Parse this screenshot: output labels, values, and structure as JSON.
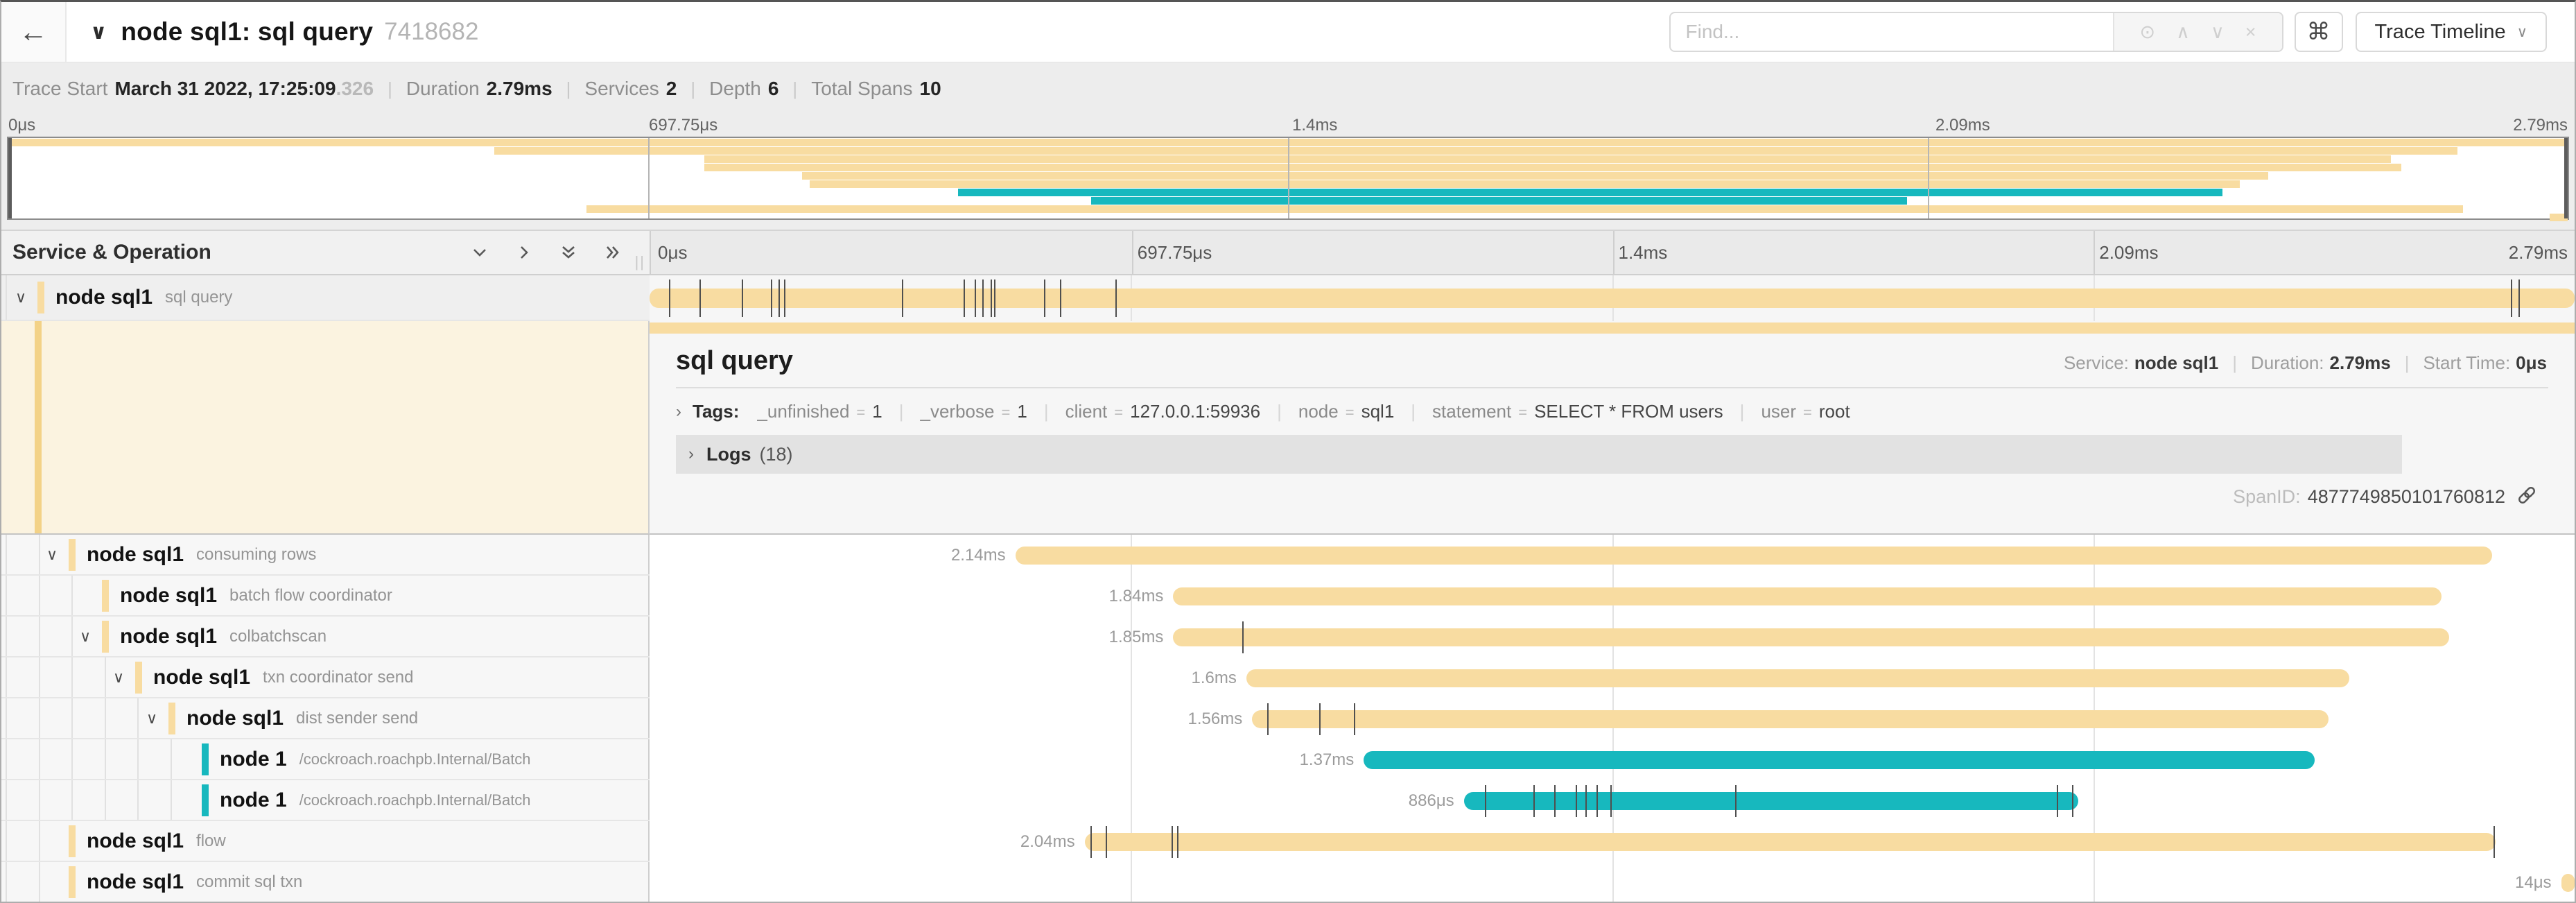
{
  "header": {
    "back_icon": "←",
    "title_caret": "∨",
    "title": "node sql1: sql query",
    "trace_id": "7418682",
    "find_placeholder": "Find...",
    "find_icons": {
      "target": "⊙",
      "prev": "∧",
      "next": "∨",
      "clear": "×"
    },
    "shortcuts_button": "⌘",
    "view_dropdown": "Trace Timeline",
    "view_caret": "∨"
  },
  "summary": {
    "items": [
      {
        "label": "Trace Start",
        "value": "March 31 2022, 17:25:09",
        "suffix": ".326"
      },
      {
        "label": "Duration",
        "value": "2.79ms"
      },
      {
        "label": "Services",
        "value": "2"
      },
      {
        "label": "Depth",
        "value": "6"
      },
      {
        "label": "Total Spans",
        "value": "10"
      }
    ]
  },
  "axis": {
    "ticks": [
      "0μs",
      "697.75μs",
      "1.4ms",
      "2.09ms",
      "2.79ms"
    ],
    "positions": [
      0,
      25,
      50,
      75,
      100
    ]
  },
  "left_header": {
    "title": "Service & Operation",
    "grip": "||"
  },
  "colors": {
    "tan": "#F8DCA1",
    "teal": "#17B8BE",
    "detail_bg": "#FBF3E0",
    "detail_stripe": "#F3D287"
  },
  "spans": [
    {
      "svc": "node sql1",
      "op": "sql query",
      "depth": 0,
      "chevron": true,
      "color": "tan",
      "selected": true,
      "dur": "",
      "bar": {
        "s": 0,
        "w": 100
      },
      "ticks": [
        1.0,
        2.6,
        4.8,
        6.3,
        6.7,
        7.0,
        13.1,
        16.3,
        16.9,
        17.3,
        17.7,
        17.9,
        20.5,
        21.3,
        24.2,
        96.7,
        97.1
      ]
    },
    {
      "svc": "node sql1",
      "op": "consuming rows",
      "depth": 1,
      "chevron": true,
      "color": "tan",
      "dur": "2.14ms",
      "bar": {
        "s": 19.0,
        "w": 76.7
      },
      "ticks": []
    },
    {
      "svc": "node sql1",
      "op": "batch flow coordinator",
      "depth": 2,
      "chevron": false,
      "color": "tan",
      "dur": "1.84ms",
      "bar": {
        "s": 27.2,
        "w": 65.9
      },
      "ticks": []
    },
    {
      "svc": "node sql1",
      "op": "colbatchscan",
      "depth": 2,
      "chevron": true,
      "color": "tan",
      "dur": "1.85ms",
      "bar": {
        "s": 27.2,
        "w": 66.3
      },
      "ticks": [
        30.8
      ]
    },
    {
      "svc": "node sql1",
      "op": "txn coordinator send",
      "depth": 3,
      "chevron": true,
      "color": "tan",
      "dur": "1.6ms",
      "bar": {
        "s": 31.0,
        "w": 57.3
      },
      "ticks": []
    },
    {
      "svc": "node sql1",
      "op": "dist sender send",
      "depth": 4,
      "chevron": true,
      "color": "tan",
      "dur": "1.56ms",
      "bar": {
        "s": 31.3,
        "w": 55.9
      },
      "ticks": [
        32.1,
        34.8,
        36.6
      ]
    },
    {
      "svc": "node 1",
      "op": "/cockroach.roachpb.Internal/Batch",
      "depth": 5,
      "chevron": false,
      "color": "teal",
      "dur": "1.37ms",
      "bar": {
        "s": 37.1,
        "w": 49.4
      },
      "ticks": []
    },
    {
      "svc": "node 1",
      "op": "/cockroach.roachpb.Internal/Batch",
      "depth": 5,
      "chevron": false,
      "color": "teal",
      "dur": "886μs",
      "bar": {
        "s": 42.3,
        "w": 31.9
      },
      "ticks": [
        43.4,
        45.9,
        47.0,
        48.1,
        48.6,
        49.2,
        49.9,
        56.4,
        73.1,
        73.9
      ]
    },
    {
      "svc": "node sql1",
      "op": "flow",
      "depth": 1,
      "chevron": false,
      "color": "tan",
      "dur": "2.04ms",
      "bar": {
        "s": 22.6,
        "w": 73.3
      },
      "ticks": [
        22.9,
        23.7,
        27.1,
        27.4,
        95.8
      ]
    },
    {
      "svc": "node sql1",
      "op": "commit sql txn",
      "depth": 1,
      "chevron": false,
      "color": "tan",
      "dur": "14μs",
      "bar": {
        "s": 99.3,
        "w": 0.7
      },
      "ticks": []
    }
  ],
  "detail": {
    "title": "sql query",
    "meta": [
      {
        "label": "Service:",
        "value": "node sql1"
      },
      {
        "label": "Duration:",
        "value": "2.79ms"
      },
      {
        "label": "Start Time:",
        "value": "0μs"
      }
    ],
    "chevron": "›",
    "tags_label": "Tags:",
    "tags": [
      {
        "key": "_unfinished",
        "value": "1"
      },
      {
        "key": "_verbose",
        "value": "1"
      },
      {
        "key": "client",
        "value": "127.0.0.1:59936"
      },
      {
        "key": "node",
        "value": "sql1"
      },
      {
        "key": "statement",
        "value": "SELECT * FROM users"
      },
      {
        "key": "user",
        "value": "root"
      }
    ],
    "logs_label": "Logs",
    "logs_count": "(18)",
    "span_id_label": "SpanID:",
    "span_id": "4877749850101760812"
  }
}
